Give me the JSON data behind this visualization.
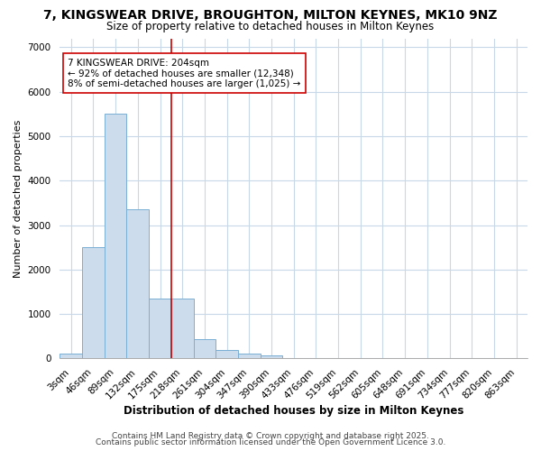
{
  "title1": "7, KINGSWEAR DRIVE, BROUGHTON, MILTON KEYNES, MK10 9NZ",
  "title2": "Size of property relative to detached houses in Milton Keynes",
  "xlabel": "Distribution of detached houses by size in Milton Keynes",
  "ylabel": "Number of detached properties",
  "categories": [
    "3sqm",
    "46sqm",
    "89sqm",
    "132sqm",
    "175sqm",
    "218sqm",
    "261sqm",
    "304sqm",
    "347sqm",
    "390sqm",
    "433sqm",
    "476sqm",
    "519sqm",
    "562sqm",
    "605sqm",
    "648sqm",
    "691sqm",
    "734sqm",
    "777sqm",
    "820sqm",
    "863sqm"
  ],
  "values": [
    100,
    2500,
    5500,
    3350,
    1350,
    1350,
    430,
    200,
    100,
    60,
    0,
    0,
    0,
    0,
    0,
    0,
    0,
    0,
    0,
    0,
    0
  ],
  "bar_color": "#ccdcec",
  "bar_edge_color": "#7aafd4",
  "vline_index": 5,
  "vline_color": "#cc0000",
  "annotation_text": "7 KINGSWEAR DRIVE: 204sqm\n← 92% of detached houses are smaller (12,348)\n8% of semi-detached houses are larger (1,025) →",
  "annotation_box_color": "white",
  "annotation_box_edge": "#cc0000",
  "ylim": [
    0,
    7200
  ],
  "yticks": [
    0,
    1000,
    2000,
    3000,
    4000,
    5000,
    6000,
    7000
  ],
  "footer1": "Contains HM Land Registry data © Crown copyright and database right 2025.",
  "footer2": "Contains public sector information licensed under the Open Government Licence 3.0.",
  "bg_color": "#ffffff",
  "grid_color": "#c8d8e8",
  "title1_fontsize": 10,
  "title2_fontsize": 8.5,
  "xlabel_fontsize": 8.5,
  "ylabel_fontsize": 8,
  "annotation_fontsize": 7.5,
  "footer_fontsize": 6.5,
  "tick_fontsize": 7.5
}
